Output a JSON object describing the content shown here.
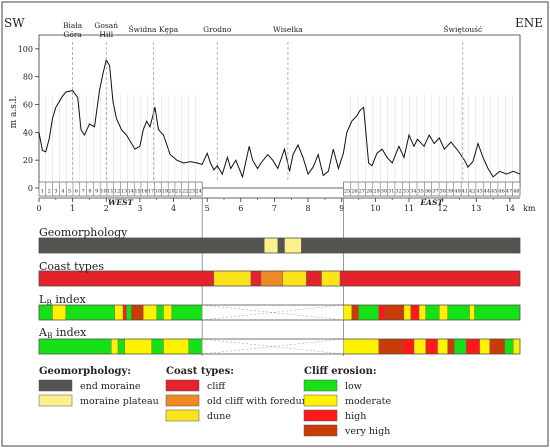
{
  "profile": {
    "direction_left": "SW",
    "direction_right": "ENE",
    "y_axis_label": "m a.s.l.",
    "y_ticks": [
      100,
      80,
      60,
      40,
      20,
      0
    ],
    "y_range": [
      0,
      110
    ],
    "x_unit": "km",
    "x_ticks": [
      0,
      1,
      2,
      3,
      4,
      5,
      6,
      7,
      8,
      9,
      10,
      11,
      12,
      13,
      14
    ],
    "x_range": [
      0,
      14.3
    ],
    "west_label": "WEST",
    "east_label": "EAST",
    "west_range_km": [
      0,
      4.85
    ],
    "east_range_km": [
      9.05,
      14.3
    ],
    "west_sections": 24,
    "east_first_section": 25,
    "east_last_section": 48,
    "places": [
      {
        "name": "Biała Góra",
        "line1": "Biała",
        "line2": "Góra",
        "km": 1.0
      },
      {
        "name": "Gosań Hill",
        "line1": "Gosań",
        "line2": "Hill",
        "km": 2.0
      },
      {
        "name": "Świdna Kępa",
        "line1": "Świdna Kępa",
        "line2": "",
        "km": 3.4
      },
      {
        "name": "Grodno",
        "line1": "Grodno",
        "line2": "",
        "km": 5.3
      },
      {
        "name": "Wisełka",
        "line1": "Wisełka",
        "line2": "",
        "km": 7.4
      },
      {
        "name": "Świętouść",
        "line1": "Świętouść",
        "line2": "",
        "km": 12.6
      }
    ],
    "elevation": [
      [
        0.0,
        40
      ],
      [
        0.1,
        27
      ],
      [
        0.2,
        26
      ],
      [
        0.3,
        35
      ],
      [
        0.4,
        50
      ],
      [
        0.5,
        58
      ],
      [
        0.6,
        62
      ],
      [
        0.7,
        66
      ],
      [
        0.8,
        69
      ],
      [
        1.0,
        70
      ],
      [
        1.15,
        65
      ],
      [
        1.25,
        42
      ],
      [
        1.35,
        38
      ],
      [
        1.5,
        46
      ],
      [
        1.65,
        44
      ],
      [
        1.8,
        70
      ],
      [
        1.9,
        82
      ],
      [
        2.0,
        92
      ],
      [
        2.1,
        88
      ],
      [
        2.2,
        62
      ],
      [
        2.3,
        50
      ],
      [
        2.45,
        42
      ],
      [
        2.6,
        38
      ],
      [
        2.75,
        32
      ],
      [
        2.85,
        28
      ],
      [
        3.0,
        30
      ],
      [
        3.1,
        42
      ],
      [
        3.2,
        48
      ],
      [
        3.3,
        44
      ],
      [
        3.45,
        58
      ],
      [
        3.55,
        42
      ],
      [
        3.7,
        38
      ],
      [
        3.9,
        24
      ],
      [
        4.1,
        20
      ],
      [
        4.3,
        18
      ],
      [
        4.5,
        19
      ],
      [
        4.7,
        18
      ],
      [
        4.85,
        17
      ],
      [
        5.0,
        25
      ],
      [
        5.1,
        18
      ],
      [
        5.2,
        13
      ],
      [
        5.3,
        16
      ],
      [
        5.45,
        10
      ],
      [
        5.6,
        22
      ],
      [
        5.7,
        14
      ],
      [
        5.85,
        20
      ],
      [
        6.05,
        8
      ],
      [
        6.25,
        30
      ],
      [
        6.35,
        20
      ],
      [
        6.5,
        14
      ],
      [
        6.6,
        18
      ],
      [
        6.8,
        24
      ],
      [
        6.95,
        20
      ],
      [
        7.1,
        14
      ],
      [
        7.3,
        28
      ],
      [
        7.45,
        12
      ],
      [
        7.55,
        24
      ],
      [
        7.7,
        31
      ],
      [
        7.85,
        22
      ],
      [
        8.0,
        10
      ],
      [
        8.15,
        15
      ],
      [
        8.3,
        24
      ],
      [
        8.45,
        9
      ],
      [
        8.6,
        12
      ],
      [
        8.75,
        28
      ],
      [
        8.9,
        14
      ],
      [
        9.05,
        25
      ],
      [
        9.15,
        40
      ],
      [
        9.3,
        48
      ],
      [
        9.45,
        52
      ],
      [
        9.55,
        56
      ],
      [
        9.65,
        58
      ],
      [
        9.72,
        40
      ],
      [
        9.8,
        18
      ],
      [
        9.9,
        16
      ],
      [
        10.05,
        25
      ],
      [
        10.2,
        28
      ],
      [
        10.35,
        22
      ],
      [
        10.5,
        18
      ],
      [
        10.7,
        30
      ],
      [
        10.85,
        22
      ],
      [
        11.0,
        38
      ],
      [
        11.15,
        30
      ],
      [
        11.25,
        35
      ],
      [
        11.45,
        30
      ],
      [
        11.6,
        38
      ],
      [
        11.75,
        32
      ],
      [
        11.9,
        36
      ],
      [
        12.05,
        28
      ],
      [
        12.25,
        33
      ],
      [
        12.45,
        27
      ],
      [
        12.65,
        20
      ],
      [
        12.75,
        15
      ],
      [
        12.9,
        19
      ],
      [
        13.05,
        32
      ],
      [
        13.2,
        22
      ],
      [
        13.35,
        14
      ],
      [
        13.5,
        8
      ],
      [
        13.7,
        12
      ],
      [
        13.9,
        10
      ],
      [
        14.1,
        12
      ],
      [
        14.3,
        10
      ]
    ]
  },
  "bars": {
    "geomorphology": {
      "label": "Geomorphology",
      "segments": [
        {
          "from": 0.0,
          "to": 6.7,
          "type": "end_moraine"
        },
        {
          "from": 6.7,
          "to": 7.1,
          "type": "moraine_plateau"
        },
        {
          "from": 7.1,
          "to": 7.3,
          "type": "end_moraine"
        },
        {
          "from": 7.3,
          "to": 7.8,
          "type": "moraine_plateau"
        },
        {
          "from": 7.8,
          "to": 14.3,
          "type": "end_moraine"
        }
      ]
    },
    "coast_types": {
      "label": "Coast types",
      "segments": [
        {
          "from": 0.0,
          "to": 5.2,
          "type": "cliff"
        },
        {
          "from": 5.2,
          "to": 6.3,
          "type": "dune"
        },
        {
          "from": 6.3,
          "to": 6.6,
          "type": "cliff"
        },
        {
          "from": 6.6,
          "to": 7.25,
          "type": "old_cliff"
        },
        {
          "from": 7.25,
          "to": 7.95,
          "type": "dune"
        },
        {
          "from": 7.95,
          "to": 8.4,
          "type": "cliff"
        },
        {
          "from": 8.4,
          "to": 8.95,
          "type": "dune"
        },
        {
          "from": 8.95,
          "to": 14.3,
          "type": "cliff"
        }
      ]
    },
    "lb_index": {
      "label_main": "L",
      "label_sub": "B",
      "label_tail": " index",
      "segments": [
        {
          "from": 0.0,
          "to": 0.4,
          "type": "low"
        },
        {
          "from": 0.4,
          "to": 0.8,
          "type": "moderate"
        },
        {
          "from": 0.8,
          "to": 2.25,
          "type": "low"
        },
        {
          "from": 2.25,
          "to": 2.5,
          "type": "moderate"
        },
        {
          "from": 2.5,
          "to": 2.6,
          "type": "high"
        },
        {
          "from": 2.6,
          "to": 2.75,
          "type": "low"
        },
        {
          "from": 2.75,
          "to": 3.1,
          "type": "very_high"
        },
        {
          "from": 3.1,
          "to": 3.5,
          "type": "moderate"
        },
        {
          "from": 3.5,
          "to": 3.7,
          "type": "low"
        },
        {
          "from": 3.7,
          "to": 3.95,
          "type": "moderate"
        },
        {
          "from": 3.95,
          "to": 4.85,
          "type": "low"
        },
        {
          "from": 9.05,
          "to": 9.3,
          "type": "moderate"
        },
        {
          "from": 9.3,
          "to": 9.5,
          "type": "very_high"
        },
        {
          "from": 9.5,
          "to": 10.1,
          "type": "low"
        },
        {
          "from": 10.1,
          "to": 10.3,
          "type": "high"
        },
        {
          "from": 10.3,
          "to": 10.85,
          "type": "very_high"
        },
        {
          "from": 10.85,
          "to": 11.05,
          "type": "moderate"
        },
        {
          "from": 11.05,
          "to": 11.3,
          "type": "high"
        },
        {
          "from": 11.3,
          "to": 11.5,
          "type": "moderate"
        },
        {
          "from": 11.5,
          "to": 11.9,
          "type": "low"
        },
        {
          "from": 11.9,
          "to": 12.15,
          "type": "moderate"
        },
        {
          "from": 12.15,
          "to": 12.8,
          "type": "low"
        },
        {
          "from": 12.8,
          "to": 12.95,
          "type": "moderate"
        },
        {
          "from": 12.95,
          "to": 14.3,
          "type": "low"
        }
      ]
    },
    "ab_index": {
      "label_main": "A",
      "label_sub": "B",
      "label_tail": " index",
      "segments": [
        {
          "from": 0.0,
          "to": 2.15,
          "type": "low"
        },
        {
          "from": 2.15,
          "to": 2.35,
          "type": "moderate"
        },
        {
          "from": 2.35,
          "to": 2.55,
          "type": "low"
        },
        {
          "from": 2.55,
          "to": 3.35,
          "type": "moderate"
        },
        {
          "from": 3.35,
          "to": 3.7,
          "type": "low"
        },
        {
          "from": 3.7,
          "to": 4.45,
          "type": "moderate"
        },
        {
          "from": 4.45,
          "to": 4.85,
          "type": "low"
        },
        {
          "from": 9.05,
          "to": 10.1,
          "type": "moderate"
        },
        {
          "from": 10.1,
          "to": 10.8,
          "type": "very_high"
        },
        {
          "from": 10.8,
          "to": 11.15,
          "type": "high"
        },
        {
          "from": 11.15,
          "to": 11.5,
          "type": "moderate"
        },
        {
          "from": 11.5,
          "to": 11.85,
          "type": "high"
        },
        {
          "from": 11.85,
          "to": 12.15,
          "type": "moderate"
        },
        {
          "from": 12.15,
          "to": 12.35,
          "type": "very_high"
        },
        {
          "from": 12.35,
          "to": 12.7,
          "type": "low"
        },
        {
          "from": 12.7,
          "to": 13.1,
          "type": "high"
        },
        {
          "from": 13.1,
          "to": 13.4,
          "type": "moderate"
        },
        {
          "from": 13.4,
          "to": 13.85,
          "type": "very_high"
        },
        {
          "from": 13.85,
          "to": 14.1,
          "type": "low"
        },
        {
          "from": 14.1,
          "to": 14.3,
          "type": "moderate"
        }
      ]
    }
  },
  "legend": {
    "geomorphology": {
      "title": "Geomorphology:",
      "items": [
        {
          "key": "end_moraine",
          "label": "end moraine"
        },
        {
          "key": "moraine_plateau",
          "label": "moraine plateau"
        }
      ]
    },
    "coast_types": {
      "title": "Coast types:",
      "items": [
        {
          "key": "cliff",
          "label": "cliff"
        },
        {
          "key": "old_cliff",
          "label": "old cliff with foredune"
        },
        {
          "key": "dune",
          "label": "dune"
        }
      ]
    },
    "cliff_erosion": {
      "title": "Cliff erosion:",
      "items": [
        {
          "key": "low",
          "label": "low"
        },
        {
          "key": "moderate",
          "label": "moderate"
        },
        {
          "key": "high",
          "label": "high"
        },
        {
          "key": "very_high",
          "label": "very high"
        }
      ]
    }
  },
  "colors": {
    "end_moraine": "#545450",
    "moraine_plateau": "#fbf08c",
    "cliff": "#e3222b",
    "old_cliff": "#ee8a24",
    "dune": "#fbe51a",
    "low": "#16e016",
    "moderate": "#fff200",
    "high": "#ff1a1a",
    "very_high": "#c83c0a"
  }
}
